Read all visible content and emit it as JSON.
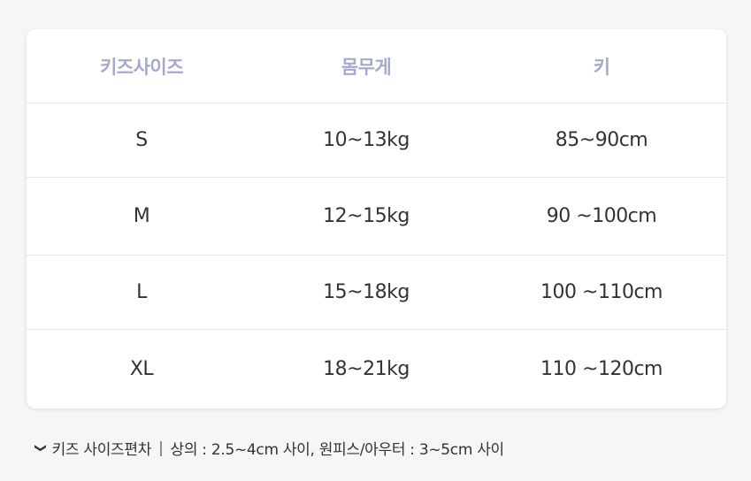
{
  "table": {
    "headers": [
      "키즈사이즈",
      "몸무게",
      "키"
    ],
    "rows": [
      [
        "S",
        "10~13kg",
        "85~90cm"
      ],
      [
        "M",
        "12~15kg",
        "90 ~100cm"
      ],
      [
        "L",
        "15~18kg",
        "100 ~110cm"
      ],
      [
        "XL",
        "18~21kg",
        "110 ~120cm"
      ]
    ]
  },
  "note": {
    "icon": "chevron-down-icon",
    "label": "키즈 사이즈편차",
    "separator": "|",
    "text": "상의 : 2.5~4cm 사이, 원피스/아우터 : 3~5cm 사이"
  },
  "colors": {
    "header_text": "#a6a9cc",
    "body_text": "#333333",
    "background": "#f7f6f4"
  }
}
